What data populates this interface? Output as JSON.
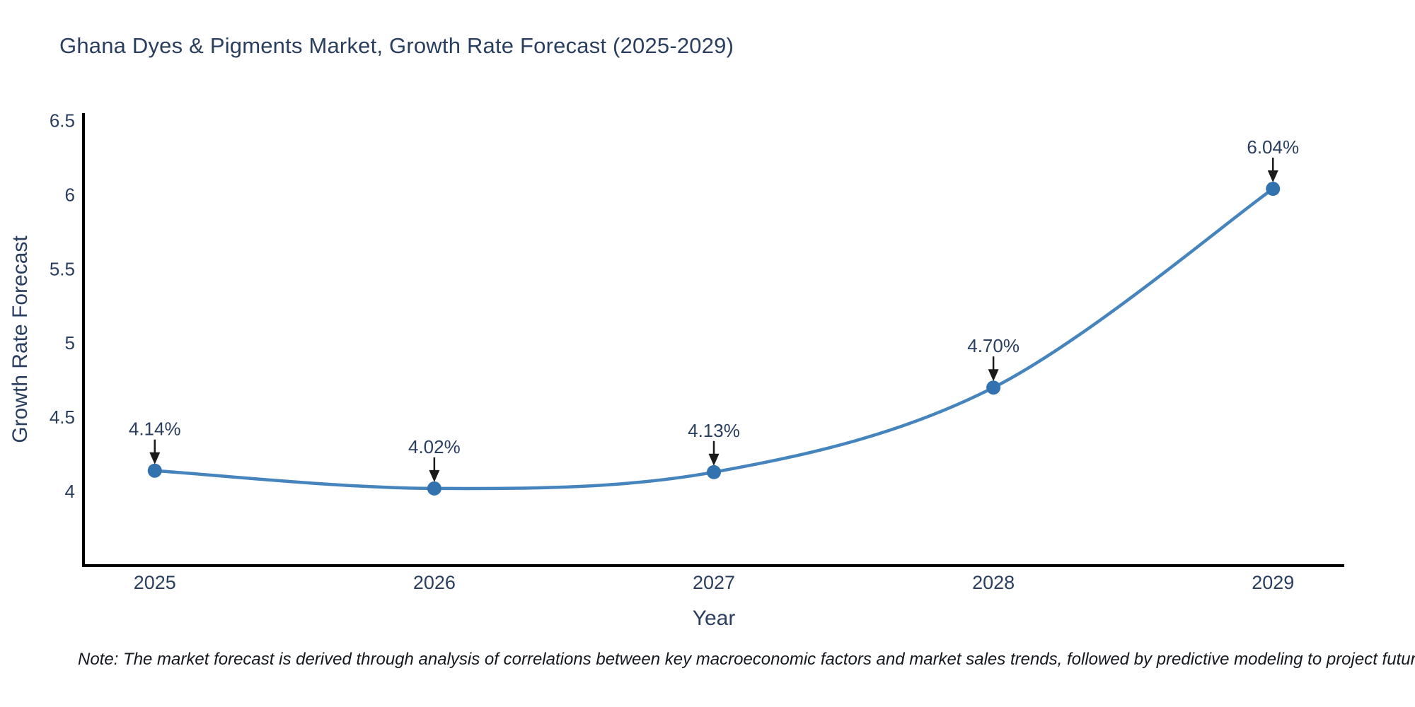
{
  "title": "Ghana Dyes & Pigments Market, Growth Rate Forecast (2025-2029)",
  "note": "Note: The market forecast is derived through analysis of correlations between key macroeconomic factors and market sales trends, followed by predictive modeling to project future sales",
  "chart_data": {
    "type": "line",
    "title": "Ghana Dyes & Pigments Market, Growth Rate Forecast (2025-2029)",
    "xlabel": "Year",
    "ylabel": "Growth Rate Forecast",
    "x": [
      2025,
      2026,
      2027,
      2028,
      2029
    ],
    "values": [
      4.14,
      4.02,
      4.13,
      4.7,
      6.04
    ],
    "point_labels": [
      "4.14%",
      "4.02%",
      "4.13%",
      "4.70%",
      "6.04%"
    ],
    "x_tick_labels": [
      "2025",
      "2026",
      "2027",
      "2028",
      "2029"
    ],
    "y_ticks": [
      4,
      4.5,
      5,
      5.5,
      6,
      6.5
    ],
    "y_tick_labels": [
      "4",
      "4.5",
      "5",
      "5.5",
      "6",
      "6.5"
    ],
    "xlim": [
      2024.745,
      2029.255
    ],
    "ylim": [
      3.5,
      6.55
    ],
    "grid": false,
    "legend": false,
    "line_shape": "spline",
    "colors": {
      "line": "#4584bd",
      "marker": "#3272ae",
      "text": "#2a3f5f",
      "axis": "#000000",
      "arrow": "#1a1a1a"
    }
  }
}
